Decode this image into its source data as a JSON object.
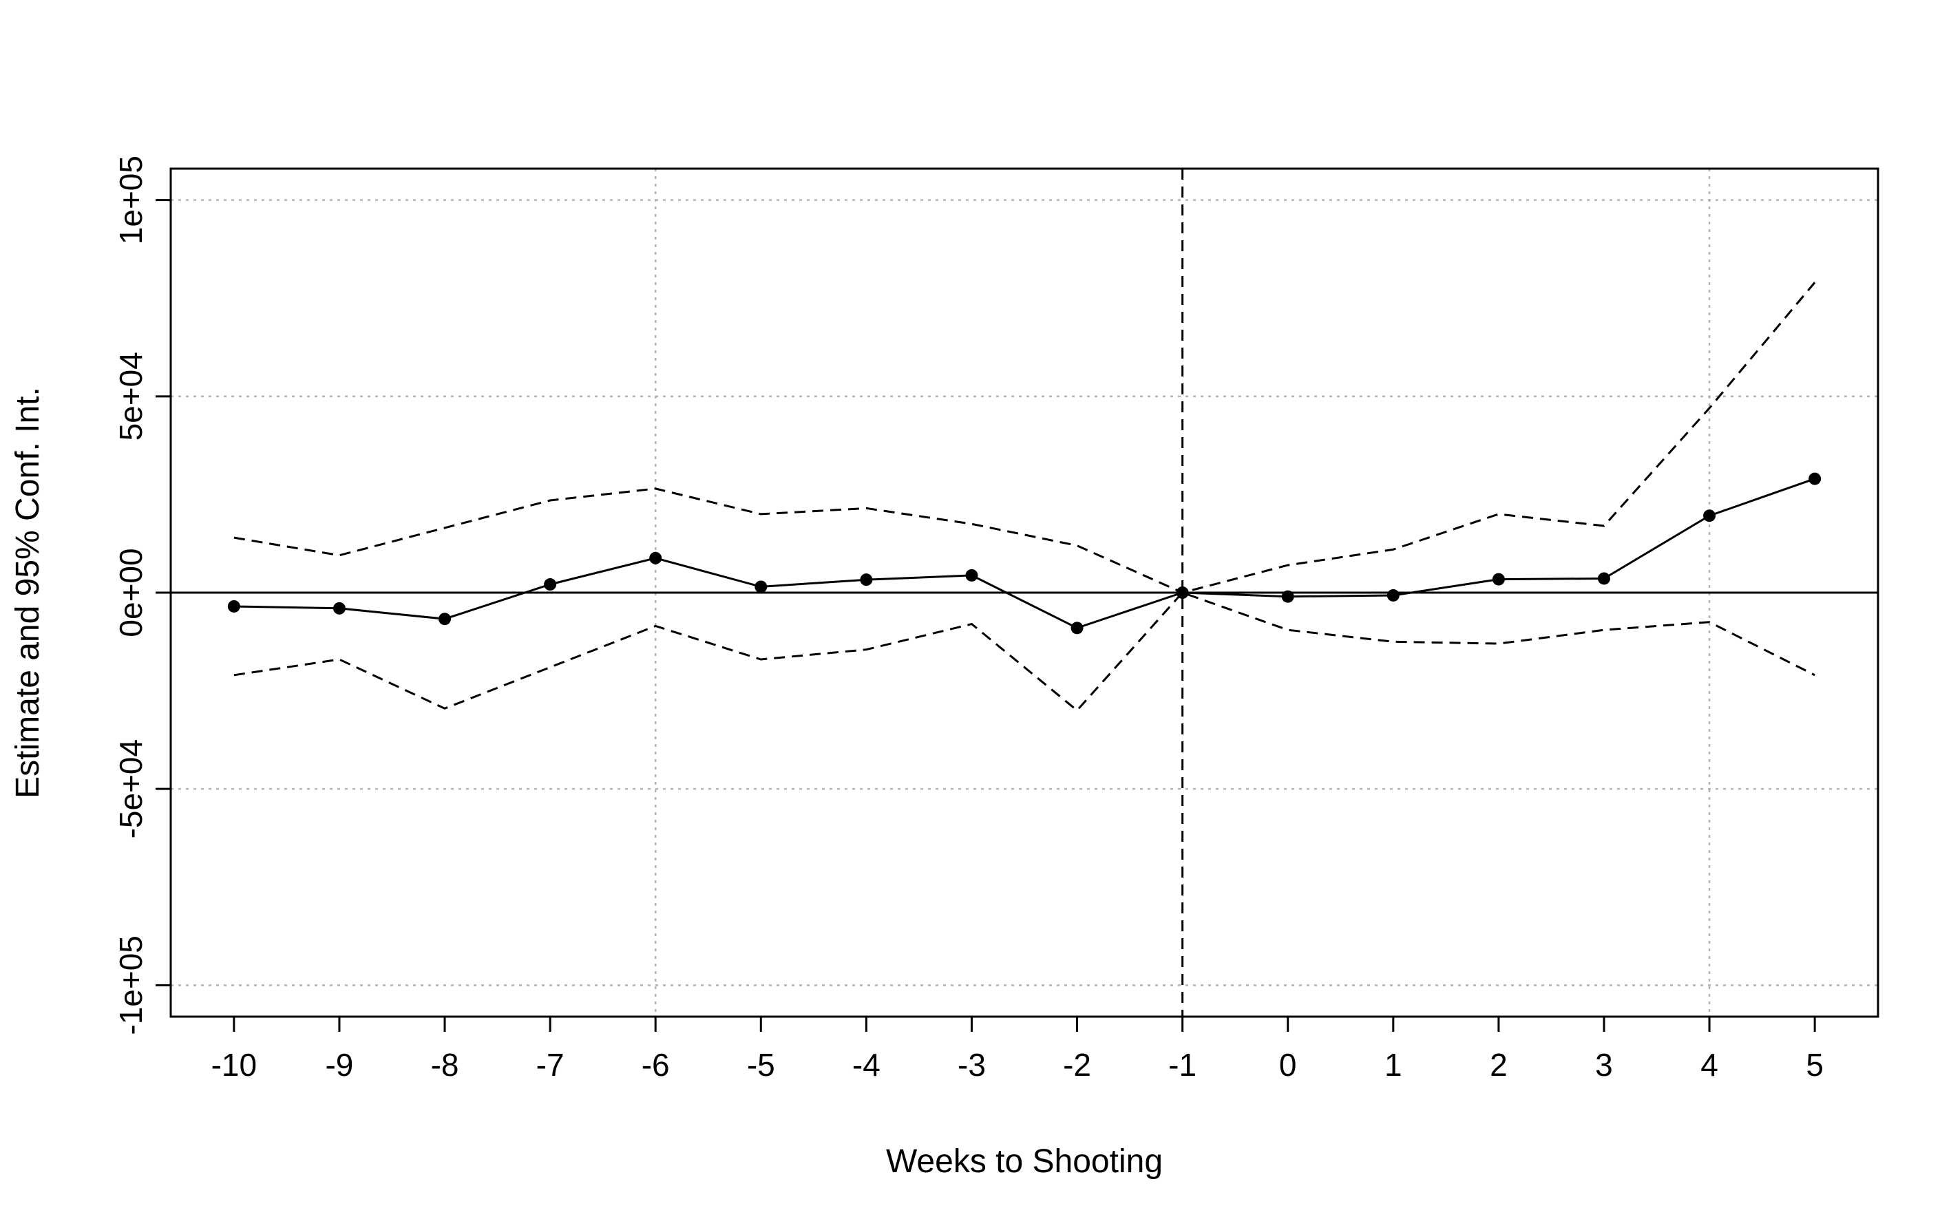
{
  "chart_data": {
    "type": "line",
    "title": "",
    "xlabel": "Weeks to Shooting",
    "ylabel": "Estimate and 95% Conf. Int.",
    "x": [
      -10,
      -9,
      -8,
      -7,
      -6,
      -5,
      -4,
      -3,
      -2,
      -1,
      0,
      1,
      2,
      3,
      4,
      5
    ],
    "x_tick_labels": [
      "-10",
      "-9",
      "-8",
      "-7",
      "-6",
      "-5",
      "-4",
      "-3",
      "-2",
      "-1",
      "0",
      "1",
      "2",
      "3",
      "4",
      "5"
    ],
    "y_ticks": [
      -100000,
      -50000,
      0,
      50000,
      100000
    ],
    "y_tick_labels": [
      "-1e+05",
      "-5e+04",
      "0e+00",
      "5e+04",
      "1e+05"
    ],
    "xlim": [
      -10.6,
      5.6
    ],
    "ylim": [
      -108000,
      108000
    ],
    "grid": true,
    "grid_x": [
      -6,
      4
    ],
    "reference_lines": {
      "horizontal_y": 0,
      "vertical_x": -1
    },
    "series": [
      {
        "style": "solid-with-points",
        "values": [
          -3500,
          -4000,
          -6700,
          2100,
          8800,
          1500,
          3300,
          4400,
          -9000,
          0,
          -1000,
          -700,
          3400,
          3600,
          19600,
          29000
        ]
      },
      {
        "style": "dashed",
        "values": [
          14000,
          9500,
          16500,
          23500,
          26500,
          20000,
          21500,
          17500,
          12000,
          0,
          7000,
          11000,
          20000,
          17000,
          47000,
          79000
        ]
      },
      {
        "style": "dashed",
        "values": [
          -21000,
          -17000,
          -29500,
          -19000,
          -8500,
          -17000,
          -14500,
          -8000,
          -30000,
          0,
          -9500,
          -12500,
          -13000,
          -9500,
          -7500,
          -21000
        ]
      }
    ]
  }
}
